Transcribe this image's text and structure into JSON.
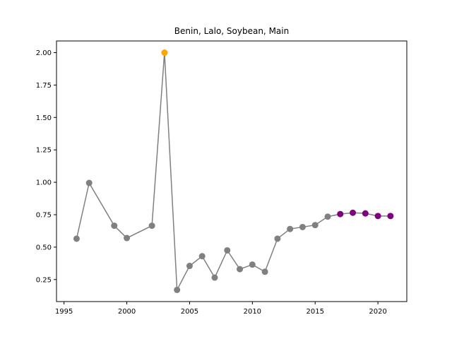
{
  "chart_data": {
    "type": "line",
    "title": "Benin, Lalo, Soybean, Main",
    "xlabel": "",
    "ylabel": "",
    "xlim": [
      1994.4,
      2022.3
    ],
    "ylim": [
      0.08,
      2.09
    ],
    "xticks": [
      1995,
      2000,
      2005,
      2010,
      2015,
      2020
    ],
    "yticks": [
      0.25,
      0.5,
      0.75,
      1.0,
      1.25,
      1.5,
      1.75,
      2.0
    ],
    "ytick_labels": [
      "0.25",
      "0.50",
      "0.75",
      "1.00",
      "1.25",
      "1.50",
      "1.75",
      "2.00"
    ],
    "grid": false,
    "line_color": "#808080",
    "series": [
      {
        "x": [
          1996,
          1997,
          1999,
          2000,
          2002,
          2003,
          2004,
          2005,
          2006,
          2007,
          2008,
          2009,
          2010,
          2011,
          2012,
          2013,
          2014,
          2015,
          2016,
          2017,
          2018,
          2019,
          2020,
          2021
        ],
        "y": [
          0.565,
          0.995,
          0.665,
          0.57,
          0.665,
          2.0,
          0.17,
          0.355,
          0.43,
          0.265,
          0.475,
          0.33,
          0.365,
          0.31,
          0.565,
          0.64,
          0.655,
          0.67,
          0.735,
          0.755,
          0.765,
          0.76,
          0.74,
          0.74
        ],
        "point_colors": [
          "#808080",
          "#808080",
          "#808080",
          "#808080",
          "#808080",
          "#ffa500",
          "#808080",
          "#808080",
          "#808080",
          "#808080",
          "#808080",
          "#808080",
          "#808080",
          "#808080",
          "#808080",
          "#808080",
          "#808080",
          "#808080",
          "#808080",
          "#800080",
          "#800080",
          "#800080",
          "#800080",
          "#800080"
        ]
      }
    ]
  }
}
